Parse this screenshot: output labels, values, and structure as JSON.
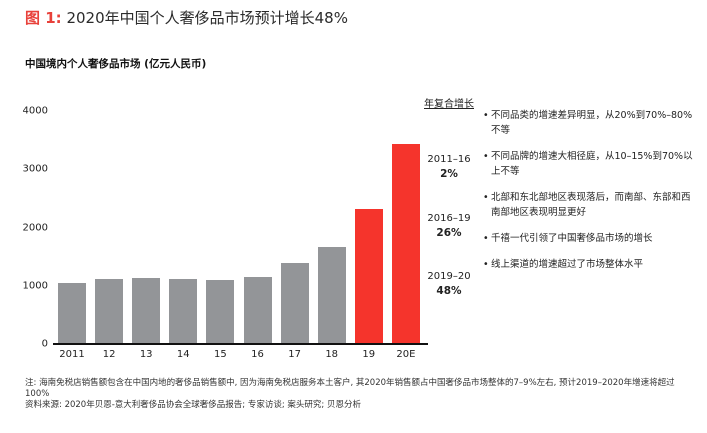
{
  "figure": {
    "number_label": "图 1:",
    "title": "2020年中国个人奢侈品市场预计增长48%",
    "subtitle": "中国境内个人奢侈品市场 (亿元人民币)"
  },
  "chart_data": {
    "type": "bar",
    "title": "2020年中国个人奢侈品市场预计增长48%",
    "subtitle": "中国境内个人奢侈品市场 (亿元人民币)",
    "xlabel": "",
    "ylabel": "亿元人民币",
    "ylim": [
      0,
      4000
    ],
    "yticks": [
      0,
      1000,
      2000,
      3000,
      4000
    ],
    "grid": false,
    "categories": [
      "2011",
      "12",
      "13",
      "14",
      "15",
      "16",
      "17",
      "18",
      "19",
      "20E"
    ],
    "values": [
      1050,
      1120,
      1140,
      1120,
      1100,
      1150,
      1390,
      1670,
      2320,
      3430
    ],
    "colors": [
      "#939598",
      "#939598",
      "#939598",
      "#939598",
      "#939598",
      "#939598",
      "#939598",
      "#939598",
      "#f5342c",
      "#f5342c"
    ],
    "highlight": {
      "categories": [
        "19",
        "20E"
      ],
      "color": "#f5342c"
    },
    "base_color": "#939598",
    "cagr": {
      "header": "年复合增长",
      "items": [
        {
          "period": "2011–16",
          "rate": "2%"
        },
        {
          "period": "2016–19",
          "rate": "26%"
        },
        {
          "period": "2019–20",
          "rate": "48%"
        }
      ]
    },
    "annotations": [
      "不同品类的增速差异明显，从20%到70%–80%不等",
      "不同品牌的增速大相径庭，从10–15%到70%以上不等",
      "北部和东北部地区表现落后，而南部、东部和西南部地区表现明显更好",
      "千禧一代引领了中国奢侈品市场的增长",
      "线上渠道的增速超过了市场整体水平"
    ]
  },
  "footer": {
    "note": "注: 海南免税店销售额包含在中国内地的奢侈品销售额中, 因为海南免税店服务本土客户, 其2020年销售额占中国奢侈品市场整体的7–9%左右, 预计2019–2020年增速将超过100%",
    "source": "资料来源: 2020年贝恩-意大利奢侈品协会全球奢侈品报告; 专家访谈; 案头研究; 贝恩分析"
  }
}
